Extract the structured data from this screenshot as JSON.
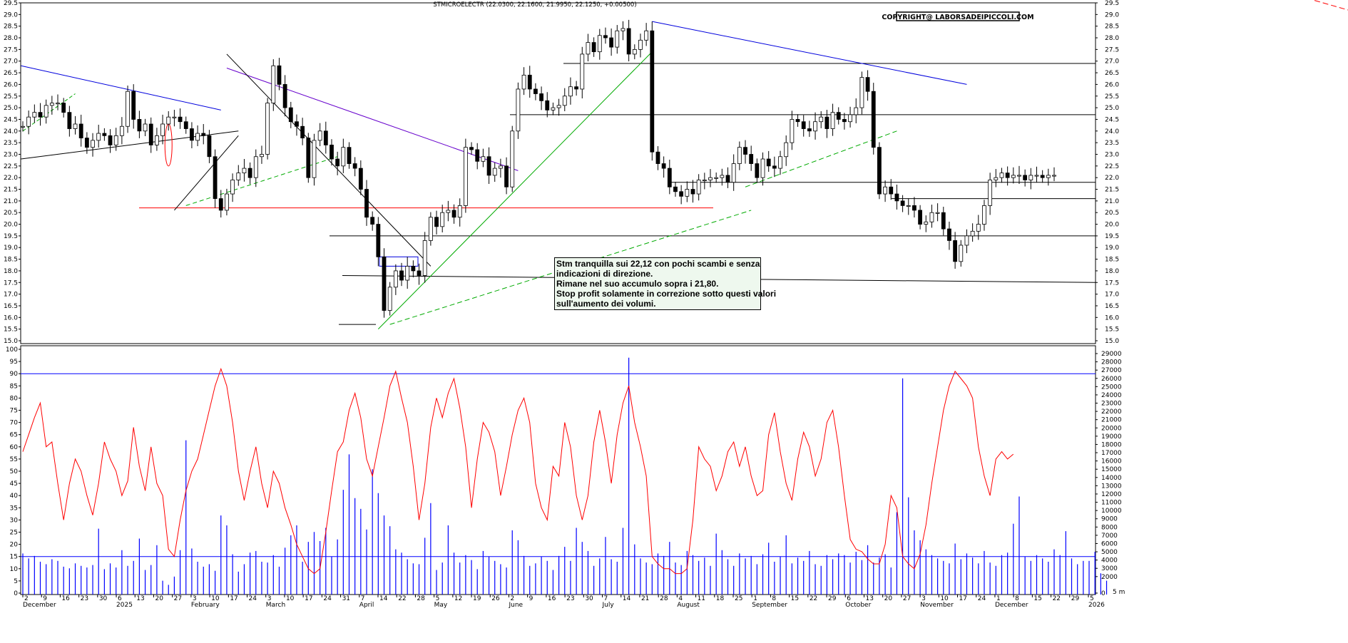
{
  "chart_data": [
    {
      "type": "candlestick",
      "title": "STMICROELECTR (22.0300, 22.1600, 21.9950, 22.1250, +0.00500)",
      "copyright": "COPYRIGHT@ LABORSADEIPICCOLI.COM",
      "ylim": [
        15.0,
        29.5
      ],
      "yticks": [
        15.0,
        15.5,
        16.0,
        16.5,
        17.0,
        17.5,
        18.0,
        18.5,
        19.0,
        19.5,
        20.0,
        20.5,
        21.0,
        21.5,
        22.0,
        22.5,
        23.0,
        23.5,
        24.0,
        24.5,
        25.0,
        25.5,
        26.0,
        26.5,
        27.0,
        27.5,
        28.0,
        28.5,
        29.0,
        29.5
      ],
      "grid": false,
      "bars_close": [
        24.2,
        24.6,
        24.8,
        24.6,
        25.1,
        25.2,
        25.2,
        24.8,
        24.1,
        24.3,
        23.7,
        23.3,
        23.6,
        23.9,
        23.8,
        23.4,
        23.8,
        24.2,
        25.7,
        24.5,
        24.0,
        24.3,
        23.4,
        23.8,
        24.3,
        24.6,
        24.6,
        24.4,
        24.1,
        23.6,
        23.9,
        23.8,
        22.9,
        21.1,
        20.6,
        21.3,
        21.9,
        22.2,
        22.4,
        22.0,
        22.9,
        23.0,
        25.2,
        26.8,
        26.0,
        25.0,
        24.4,
        24.2,
        23.7,
        22.0,
        23.6,
        24.0,
        23.4,
        22.8,
        22.5,
        23.3,
        22.6,
        22.4,
        21.5,
        20.3,
        20.0,
        18.6,
        16.3,
        17.3,
        18.0,
        17.6,
        18.2,
        18.0,
        17.8,
        19.3,
        20.3,
        19.9,
        20.5,
        20.6,
        20.3,
        20.8,
        23.3,
        23.2,
        22.7,
        22.9,
        22.1,
        22.4,
        22.5,
        21.6,
        24.0,
        25.8,
        26.4,
        25.8,
        25.6,
        25.3,
        24.9,
        25.0,
        25.1,
        25.5,
        25.9,
        25.8,
        27.3,
        27.8,
        27.4,
        28.1,
        28.0,
        27.6,
        28.3,
        28.4,
        27.3,
        27.5,
        27.9,
        28.3,
        23.1,
        22.6,
        22.4,
        21.6,
        21.4,
        21.2,
        21.5,
        21.3,
        21.9,
        21.9,
        22.0,
        22.0,
        22.1,
        21.8,
        22.6,
        23.3,
        23.0,
        22.6,
        22.0,
        22.8,
        22.5,
        22.4,
        22.9,
        23.5,
        24.5,
        24.4,
        24.1,
        24.0,
        24.4,
        24.6,
        24.1,
        24.8,
        24.5,
        24.4,
        24.7,
        25.0,
        26.3,
        25.7,
        23.3,
        21.3,
        21.6,
        21.3,
        21.0,
        20.8,
        20.8,
        20.6,
        20.0,
        20.1,
        20.5,
        20.5,
        19.8,
        19.3,
        18.4,
        19.1,
        19.5,
        19.7,
        20.0,
        20.8,
        21.9,
        22.0,
        22.2,
        22.0,
        22.1,
        22.1,
        21.9,
        22.1,
        22.1,
        22.0,
        22.1,
        22.1
      ],
      "resistance_support_levels": [
        26.9,
        24.7,
        21.8,
        21.1,
        20.7,
        19.5,
        17.8,
        15.7
      ],
      "x_tick_labels": [
        {
          "day": "2",
          "month": "December"
        },
        {
          "day": "9"
        },
        {
          "day": "16"
        },
        {
          "day": "23"
        },
        {
          "day": "30"
        },
        {
          "day": "6",
          "month": "2025"
        },
        {
          "day": "13"
        },
        {
          "day": "20"
        },
        {
          "day": "27"
        },
        {
          "day": "3",
          "month": "February"
        },
        {
          "day": "10"
        },
        {
          "day": "17"
        },
        {
          "day": "24"
        },
        {
          "day": "3",
          "month": "March"
        },
        {
          "day": "10"
        },
        {
          "day": "17"
        },
        {
          "day": "24"
        },
        {
          "day": "31"
        },
        {
          "day": "7",
          "month": "April"
        },
        {
          "day": "14"
        },
        {
          "day": "22"
        },
        {
          "day": "28"
        },
        {
          "day": "5",
          "month": "May"
        },
        {
          "day": "12"
        },
        {
          "day": "19"
        },
        {
          "day": "26"
        },
        {
          "day": "2",
          "month": "June"
        },
        {
          "day": "9"
        },
        {
          "day": "16"
        },
        {
          "day": "23"
        },
        {
          "day": "30"
        },
        {
          "day": "7",
          "month": "July"
        },
        {
          "day": "14"
        },
        {
          "day": "21"
        },
        {
          "day": "28"
        },
        {
          "day": "4",
          "month": "August"
        },
        {
          "day": "11"
        },
        {
          "day": "18"
        },
        {
          "day": "25"
        },
        {
          "day": "1",
          "month": "September"
        },
        {
          "day": "8"
        },
        {
          "day": "15"
        },
        {
          "day": "22"
        },
        {
          "day": "29"
        },
        {
          "day": "6",
          "month": "October"
        },
        {
          "day": "13"
        },
        {
          "day": "20"
        },
        {
          "day": "27"
        },
        {
          "day": "3",
          "month": "November"
        },
        {
          "day": "10"
        },
        {
          "day": "17"
        },
        {
          "day": "24"
        },
        {
          "day": "1",
          "month": "December"
        },
        {
          "day": "8"
        },
        {
          "day": "15"
        },
        {
          "day": "22"
        },
        {
          "day": "29"
        },
        {
          "day": "5",
          "month": "2026"
        }
      ]
    },
    {
      "type": "line+bar",
      "oscillator_ylim": [
        0,
        100
      ],
      "oscillator_yticks": [
        0,
        5,
        10,
        15,
        20,
        25,
        30,
        35,
        40,
        45,
        50,
        55,
        60,
        65,
        70,
        75,
        80,
        85,
        90,
        95,
        100
      ],
      "oscillator_levels": [
        90,
        15
      ],
      "volume_ylim": [
        0,
        29000
      ],
      "volume_yticks": [
        0,
        2000,
        3000,
        4000,
        5000,
        6000,
        7000,
        8000,
        9000,
        10000,
        11000,
        12000,
        13000,
        14000,
        15000,
        16000,
        17000,
        18000,
        19000,
        20000,
        21000,
        22000,
        23000,
        24000,
        25000,
        26000,
        27000,
        28000,
        29000
      ],
      "volume_label": "5 m",
      "series": [
        {
          "values": [
            58,
            65,
            72,
            78,
            60,
            62,
            45,
            30,
            45,
            55,
            50,
            40,
            32,
            45,
            62,
            55,
            50,
            40,
            46,
            68,
            52,
            42,
            60,
            45,
            40,
            18,
            15,
            30,
            42,
            50,
            55,
            65,
            75,
            85,
            92,
            85,
            70,
            50,
            38,
            50,
            60,
            45,
            35,
            50,
            45,
            35,
            28,
            20,
            15,
            10,
            8,
            10,
            25,
            42,
            58,
            62,
            75,
            82,
            72,
            55,
            48,
            60,
            72,
            85,
            91,
            80,
            70,
            52,
            30,
            45,
            68,
            80,
            72,
            82,
            88,
            76,
            60,
            35,
            55,
            70,
            66,
            58,
            40,
            52,
            65,
            75,
            80,
            70,
            45,
            35,
            30,
            52,
            48,
            70,
            60,
            40,
            30,
            40,
            62,
            75,
            62,
            45,
            65,
            78,
            85,
            70,
            60,
            48,
            15,
            12,
            10,
            10,
            8,
            8,
            10,
            30,
            60,
            55,
            52,
            42,
            48,
            58,
            62,
            52,
            60,
            48,
            40,
            42,
            65,
            74,
            58,
            45,
            38,
            55,
            66,
            60,
            48,
            55,
            70,
            75,
            60,
            40,
            22,
            18,
            17,
            14,
            12,
            12,
            20,
            40,
            35,
            15,
            12,
            10,
            16,
            28,
            45,
            60,
            75,
            85,
            91,
            88,
            85,
            80,
            60,
            48,
            40,
            55,
            58,
            55,
            57
          ]
        },
        {
          "values": [
            4800,
            4200,
            4500,
            3800,
            3500,
            4100,
            3900,
            3200,
            3000,
            3600,
            3300,
            3100,
            3400,
            7800,
            2900,
            3600,
            3100,
            5200,
            3300,
            3900,
            6600,
            2800,
            3400,
            5800,
            1500,
            1000,
            2000,
            5200,
            18500,
            5400,
            3800,
            3200,
            3500,
            2700,
            9400,
            8200,
            4700,
            2600,
            3500,
            4900,
            5100,
            3800,
            3700,
            4600,
            3200,
            5500,
            7000,
            8200,
            3800,
            6200,
            7400,
            6300,
            7900,
            4400,
            6500,
            12500,
            16800,
            11500,
            10200,
            7700,
            15000,
            12100,
            9400,
            8100,
            5300,
            4900,
            4100,
            3600,
            3500,
            6700,
            10900,
            2800,
            3700,
            8200,
            4900,
            3700,
            4600,
            4000,
            2900,
            5100,
            4400,
            3900,
            3500,
            3100,
            7600,
            6400,
            4500,
            3300,
            3600,
            4400,
            3900,
            2800,
            4500,
            5600,
            3900,
            7900,
            6200,
            5100,
            3300,
            4200,
            6800,
            4100,
            3800,
            7900,
            28500,
            5900,
            4200,
            3700,
            3500,
            4800,
            4500,
            6200,
            3700,
            3400,
            5100,
            4600,
            3900,
            4300,
            3300,
            7200,
            5200,
            4100,
            3300,
            4800,
            4200,
            4500,
            3500,
            4700,
            6100,
            3800,
            4400,
            7000,
            3600,
            4300,
            3900,
            5100,
            3500,
            3300,
            4600,
            4100,
            4800,
            4600,
            3700,
            5000,
            4000,
            5800,
            3700,
            4300,
            4700,
            3100,
            9800,
            26000,
            11600,
            7600,
            6400,
            5300,
            4600,
            4200,
            3900,
            3600,
            6000,
            4100,
            4800,
            4300,
            3600,
            5100,
            3700,
            3300,
            4600,
            4900,
            8400,
            11700,
            4400,
            3900,
            4600,
            4200,
            3800,
            5300,
            4600,
            7500,
            4200,
            3500,
            3900,
            3900,
            5000,
            2400,
            1500
          ]
        }
      ]
    }
  ],
  "annotation": {
    "lines": [
      "Stm tranquilla sui 22,12 con pochi scambi e senza",
      "indicazioni di direzione.",
      "Rimane nel suo accumulo sopra i 21,80.",
      "Stop profit solamente in correzione sotto questi valori",
      "sull'aumento dei volumi."
    ]
  },
  "colors": {
    "oscillator": "#ff0000",
    "volume": "#0000ff",
    "levels": "#0000ff",
    "horizontal_support": "#ff0000",
    "uptrend": "#00aa00",
    "downtrend_blue": "#0000dd",
    "downtrend_purple": "#6600cc",
    "downtrend_black": "#000000"
  }
}
